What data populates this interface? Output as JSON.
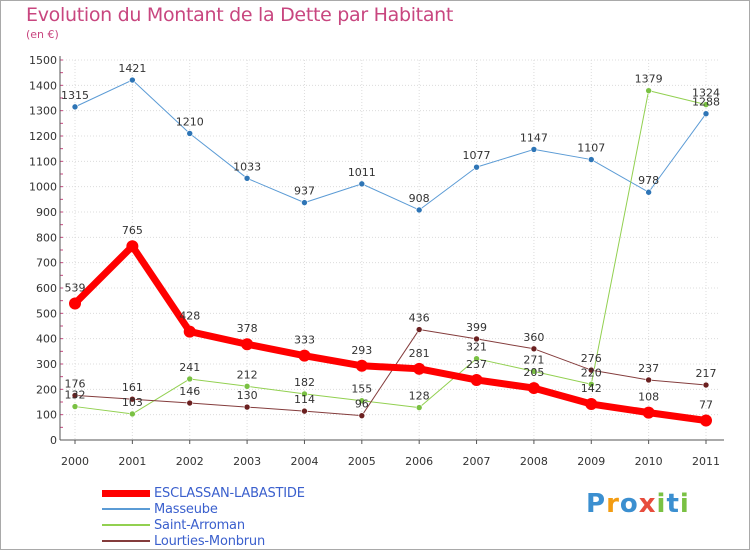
{
  "chart_data": {
    "type": "line",
    "title": "Evolution du Montant de la Dette par Habitant",
    "subtitle": "(en €)",
    "xlabel": "",
    "ylabel": "",
    "ylim": [
      0,
      1500
    ],
    "yticks": [
      0,
      100,
      200,
      300,
      400,
      500,
      600,
      700,
      800,
      900,
      1000,
      1100,
      1200,
      1300,
      1400,
      1500
    ],
    "x": [
      "2000",
      "2001",
      "2002",
      "2003",
      "2004",
      "2005",
      "2006",
      "2007",
      "2008",
      "2009",
      "2010",
      "2011"
    ],
    "grid": true,
    "legend_position": "bottom-left",
    "series": [
      {
        "name": "ESCLASSAN-LABASTIDE",
        "color": "#ff0000",
        "marker": "#ff0000",
        "width": 7,
        "values": [
          539,
          765,
          428,
          378,
          333,
          293,
          281,
          237,
          205,
          142,
          108,
          77
        ]
      },
      {
        "name": "Masseube",
        "color": "#5b9bd5",
        "marker": "#2e75b6",
        "width": 1,
        "values": [
          1315,
          1421,
          1210,
          1033,
          937,
          1011,
          908,
          1077,
          1147,
          1107,
          978,
          1288
        ]
      },
      {
        "name": "Saint-Arroman",
        "color": "#92d050",
        "marker": "#7ac143",
        "width": 1,
        "values": [
          132,
          103,
          241,
          212,
          182,
          155,
          128,
          321,
          271,
          220,
          1379,
          1324
        ]
      },
      {
        "name": "Lourties-Monbrun",
        "color": "#843c3c",
        "marker": "#6b2020",
        "width": 1,
        "values": [
          176,
          161,
          146,
          130,
          114,
          96,
          436,
          399,
          360,
          276,
          237,
          217
        ]
      }
    ]
  },
  "logo": {
    "text": "Proxiti",
    "letters": [
      {
        "ch": "P",
        "color": "#3b8fd0"
      },
      {
        "ch": "r",
        "color": "#f39c12"
      },
      {
        "ch": "o",
        "color": "#3b8fd0"
      },
      {
        "ch": "x",
        "color": "#e74c3c"
      },
      {
        "ch": "i",
        "color": "#7ac143"
      },
      {
        "ch": "t",
        "color": "#3b8fd0"
      },
      {
        "ch": "i",
        "color": "#7ac143"
      }
    ]
  }
}
